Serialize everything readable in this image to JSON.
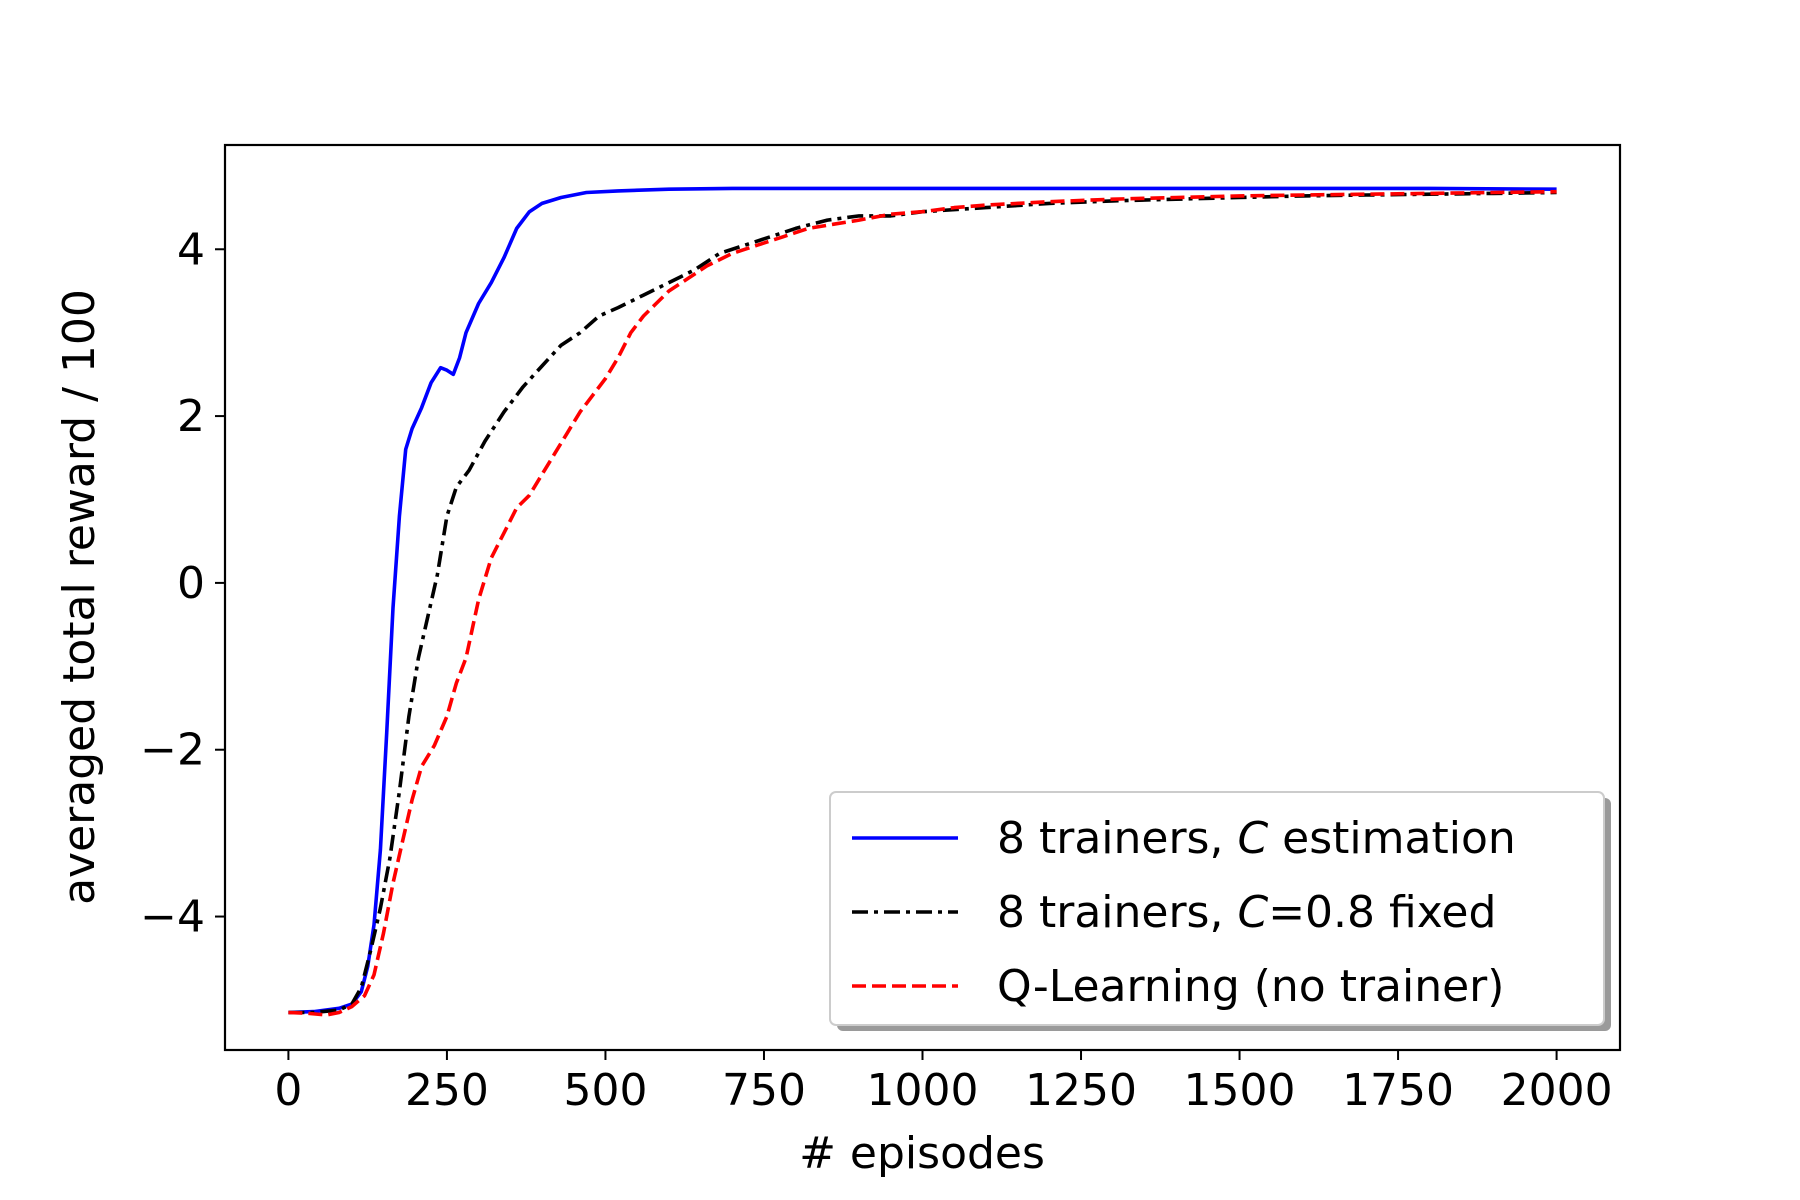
{
  "chart_data": {
    "type": "line",
    "title": "",
    "xlabel": "# episodes",
    "ylabel": "averaged total reward / 100",
    "xlim": [
      -100,
      2100
    ],
    "ylim": [
      -5.6,
      5.25
    ],
    "xticks": [
      0,
      250,
      500,
      750,
      1000,
      1250,
      1500,
      1750,
      2000
    ],
    "xtick_labels": [
      "0",
      "250",
      "500",
      "750",
      "1000",
      "1250",
      "1500",
      "1750",
      "2000"
    ],
    "yticks": [
      -4,
      -2,
      0,
      2,
      4
    ],
    "ytick_labels": [
      "−4",
      "−2",
      "0",
      "2",
      "4"
    ],
    "grid": false,
    "legend_position": "lower-right",
    "series": [
      {
        "name_prefix": "8 trainers, ",
        "name_var": "C",
        "name_suffix": " estimation",
        "color": "#0000ff",
        "style": "solid",
        "points": [
          [
            0,
            -5.15
          ],
          [
            40,
            -5.14
          ],
          [
            80,
            -5.1
          ],
          [
            100,
            -5.05
          ],
          [
            115,
            -4.9
          ],
          [
            125,
            -4.6
          ],
          [
            135,
            -4.1
          ],
          [
            145,
            -3.2
          ],
          [
            155,
            -1.8
          ],
          [
            165,
            -0.3
          ],
          [
            175,
            0.8
          ],
          [
            185,
            1.6
          ],
          [
            195,
            1.85
          ],
          [
            210,
            2.1
          ],
          [
            225,
            2.4
          ],
          [
            240,
            2.58
          ],
          [
            250,
            2.55
          ],
          [
            260,
            2.5
          ],
          [
            270,
            2.7
          ],
          [
            280,
            3.0
          ],
          [
            300,
            3.35
          ],
          [
            320,
            3.6
          ],
          [
            340,
            3.9
          ],
          [
            360,
            4.25
          ],
          [
            380,
            4.45
          ],
          [
            400,
            4.55
          ],
          [
            430,
            4.62
          ],
          [
            470,
            4.68
          ],
          [
            520,
            4.7
          ],
          [
            600,
            4.72
          ],
          [
            700,
            4.73
          ],
          [
            800,
            4.73
          ],
          [
            1000,
            4.73
          ],
          [
            1200,
            4.73
          ],
          [
            1400,
            4.73
          ],
          [
            1600,
            4.73
          ],
          [
            1800,
            4.73
          ],
          [
            2000,
            4.72
          ]
        ]
      },
      {
        "name_prefix": "8 trainers, ",
        "name_var": "C",
        "name_suffix": "=0.8 fixed",
        "color": "#000000",
        "style": "dashdot",
        "points": [
          [
            0,
            -5.15
          ],
          [
            40,
            -5.15
          ],
          [
            80,
            -5.12
          ],
          [
            100,
            -5.05
          ],
          [
            115,
            -4.85
          ],
          [
            130,
            -4.4
          ],
          [
            145,
            -3.9
          ],
          [
            160,
            -3.3
          ],
          [
            175,
            -2.5
          ],
          [
            190,
            -1.6
          ],
          [
            205,
            -0.9
          ],
          [
            220,
            -0.4
          ],
          [
            235,
            0.1
          ],
          [
            250,
            0.8
          ],
          [
            265,
            1.15
          ],
          [
            285,
            1.35
          ],
          [
            310,
            1.7
          ],
          [
            340,
            2.05
          ],
          [
            370,
            2.35
          ],
          [
            400,
            2.6
          ],
          [
            430,
            2.85
          ],
          [
            460,
            3.0
          ],
          [
            490,
            3.2
          ],
          [
            520,
            3.3
          ],
          [
            560,
            3.45
          ],
          [
            600,
            3.6
          ],
          [
            640,
            3.75
          ],
          [
            680,
            3.95
          ],
          [
            720,
            4.05
          ],
          [
            760,
            4.15
          ],
          [
            800,
            4.25
          ],
          [
            850,
            4.35
          ],
          [
            900,
            4.4
          ],
          [
            950,
            4.4
          ],
          [
            1000,
            4.45
          ],
          [
            1100,
            4.5
          ],
          [
            1200,
            4.55
          ],
          [
            1300,
            4.58
          ],
          [
            1400,
            4.6
          ],
          [
            1500,
            4.62
          ],
          [
            1600,
            4.64
          ],
          [
            1700,
            4.65
          ],
          [
            1800,
            4.66
          ],
          [
            1900,
            4.67
          ],
          [
            2000,
            4.68
          ]
        ]
      },
      {
        "name_prefix": "Q-Learning (no trainer)",
        "name_var": "",
        "name_suffix": "",
        "color": "#ff0000",
        "style": "dashed",
        "points": [
          [
            0,
            -5.15
          ],
          [
            30,
            -5.16
          ],
          [
            60,
            -5.18
          ],
          [
            80,
            -5.15
          ],
          [
            100,
            -5.08
          ],
          [
            120,
            -4.95
          ],
          [
            135,
            -4.7
          ],
          [
            150,
            -4.2
          ],
          [
            165,
            -3.6
          ],
          [
            180,
            -3.1
          ],
          [
            195,
            -2.6
          ],
          [
            210,
            -2.2
          ],
          [
            230,
            -1.95
          ],
          [
            250,
            -1.6
          ],
          [
            265,
            -1.2
          ],
          [
            280,
            -0.9
          ],
          [
            300,
            -0.2
          ],
          [
            320,
            0.3
          ],
          [
            340,
            0.6
          ],
          [
            360,
            0.9
          ],
          [
            380,
            1.05
          ],
          [
            400,
            1.3
          ],
          [
            420,
            1.55
          ],
          [
            440,
            1.8
          ],
          [
            460,
            2.05
          ],
          [
            480,
            2.25
          ],
          [
            500,
            2.45
          ],
          [
            520,
            2.7
          ],
          [
            540,
            3.0
          ],
          [
            560,
            3.2
          ],
          [
            580,
            3.35
          ],
          [
            600,
            3.5
          ],
          [
            630,
            3.65
          ],
          [
            660,
            3.8
          ],
          [
            700,
            3.95
          ],
          [
            740,
            4.05
          ],
          [
            780,
            4.15
          ],
          [
            820,
            4.25
          ],
          [
            860,
            4.3
          ],
          [
            900,
            4.35
          ],
          [
            950,
            4.42
          ],
          [
            1000,
            4.45
          ],
          [
            1050,
            4.5
          ],
          [
            1100,
            4.53
          ],
          [
            1200,
            4.57
          ],
          [
            1300,
            4.6
          ],
          [
            1400,
            4.62
          ],
          [
            1500,
            4.64
          ],
          [
            1600,
            4.65
          ],
          [
            1700,
            4.66
          ],
          [
            1800,
            4.67
          ],
          [
            1900,
            4.68
          ],
          [
            2000,
            4.69
          ]
        ]
      }
    ]
  }
}
